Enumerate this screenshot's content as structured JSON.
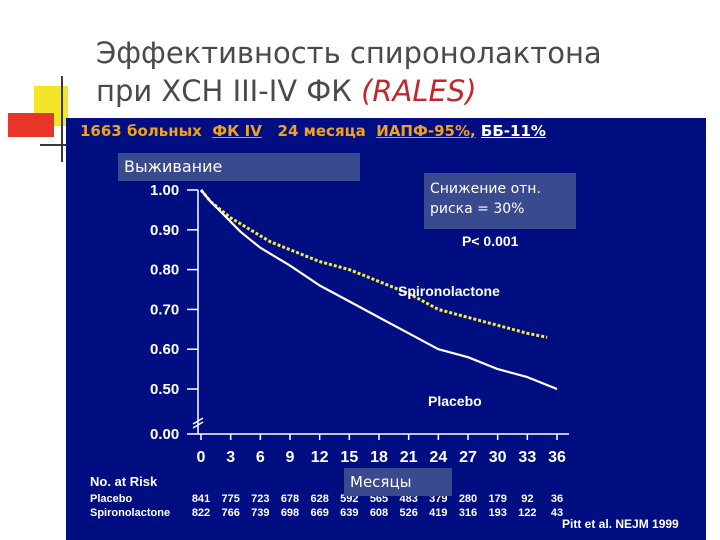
{
  "slide": {
    "title_line1": "Эффективность спиронолактона",
    "title_line2": "при ХСН III-IV ФК ",
    "title_study": "(RALES)",
    "subtitle": {
      "patients": "1663 больных",
      "class": "ФК IV",
      "duration": "24 месяца",
      "acei": "ИАПФ-95%,",
      "bb": "ББ-11%"
    },
    "survival_label": "Выживание",
    "risk_line1": "Снижение отн.",
    "risk_line2": "риска = 30%",
    "months_label": "Месяцы",
    "citation": "Pitt et al. NEJM 1999",
    "colors": {
      "panel": "#000e82",
      "placebo": "#ffffff",
      "spironolactone": "#f5ee3a",
      "accent": "#f0a21c",
      "title": "#4a4a4a"
    }
  },
  "chart_data": {
    "type": "line",
    "x_ticks": [
      0,
      3,
      6,
      9,
      12,
      15,
      18,
      21,
      24,
      27,
      30,
      33,
      36
    ],
    "y_ticks": [
      "1.00",
      "0.90",
      "0.80",
      "0.70",
      "0.60",
      "0.50",
      "0.00"
    ],
    "y_tick_values": [
      1.0,
      0.9,
      0.8,
      0.7,
      0.6,
      0.5,
      0.0
    ],
    "xlim": [
      0,
      36
    ],
    "axis_break": true,
    "p_value": "P< 0.001",
    "series": [
      {
        "name": "Spironolactone",
        "x": [
          0,
          1,
          2,
          3,
          4,
          5,
          6,
          7,
          9,
          12,
          15,
          18,
          21,
          24,
          27,
          30,
          33,
          35
        ],
        "y": [
          1.0,
          0.97,
          0.95,
          0.93,
          0.915,
          0.9,
          0.885,
          0.87,
          0.85,
          0.82,
          0.8,
          0.77,
          0.74,
          0.7,
          0.68,
          0.66,
          0.64,
          0.63
        ]
      },
      {
        "name": "Placebo",
        "x": [
          0,
          1,
          2,
          3,
          4,
          5,
          6,
          7,
          9,
          12,
          15,
          18,
          21,
          24,
          27,
          30,
          33,
          36
        ],
        "y": [
          1.0,
          0.97,
          0.945,
          0.92,
          0.895,
          0.875,
          0.855,
          0.84,
          0.81,
          0.76,
          0.72,
          0.68,
          0.64,
          0.6,
          0.58,
          0.55,
          0.53,
          0.5
        ]
      }
    ],
    "risk_table": {
      "title": "No. at Risk",
      "rows": [
        {
          "label": "Placebo",
          "values": [
            "841",
            "775",
            "723",
            "678",
            "628",
            "592",
            "565",
            "483",
            "379",
            "280",
            "179",
            "92",
            "36"
          ]
        },
        {
          "label": "Spironolactone",
          "values": [
            "822",
            "766",
            "739",
            "698",
            "669",
            "639",
            "608",
            "526",
            "419",
            "316",
            "193",
            "122",
            "43"
          ]
        }
      ]
    }
  }
}
